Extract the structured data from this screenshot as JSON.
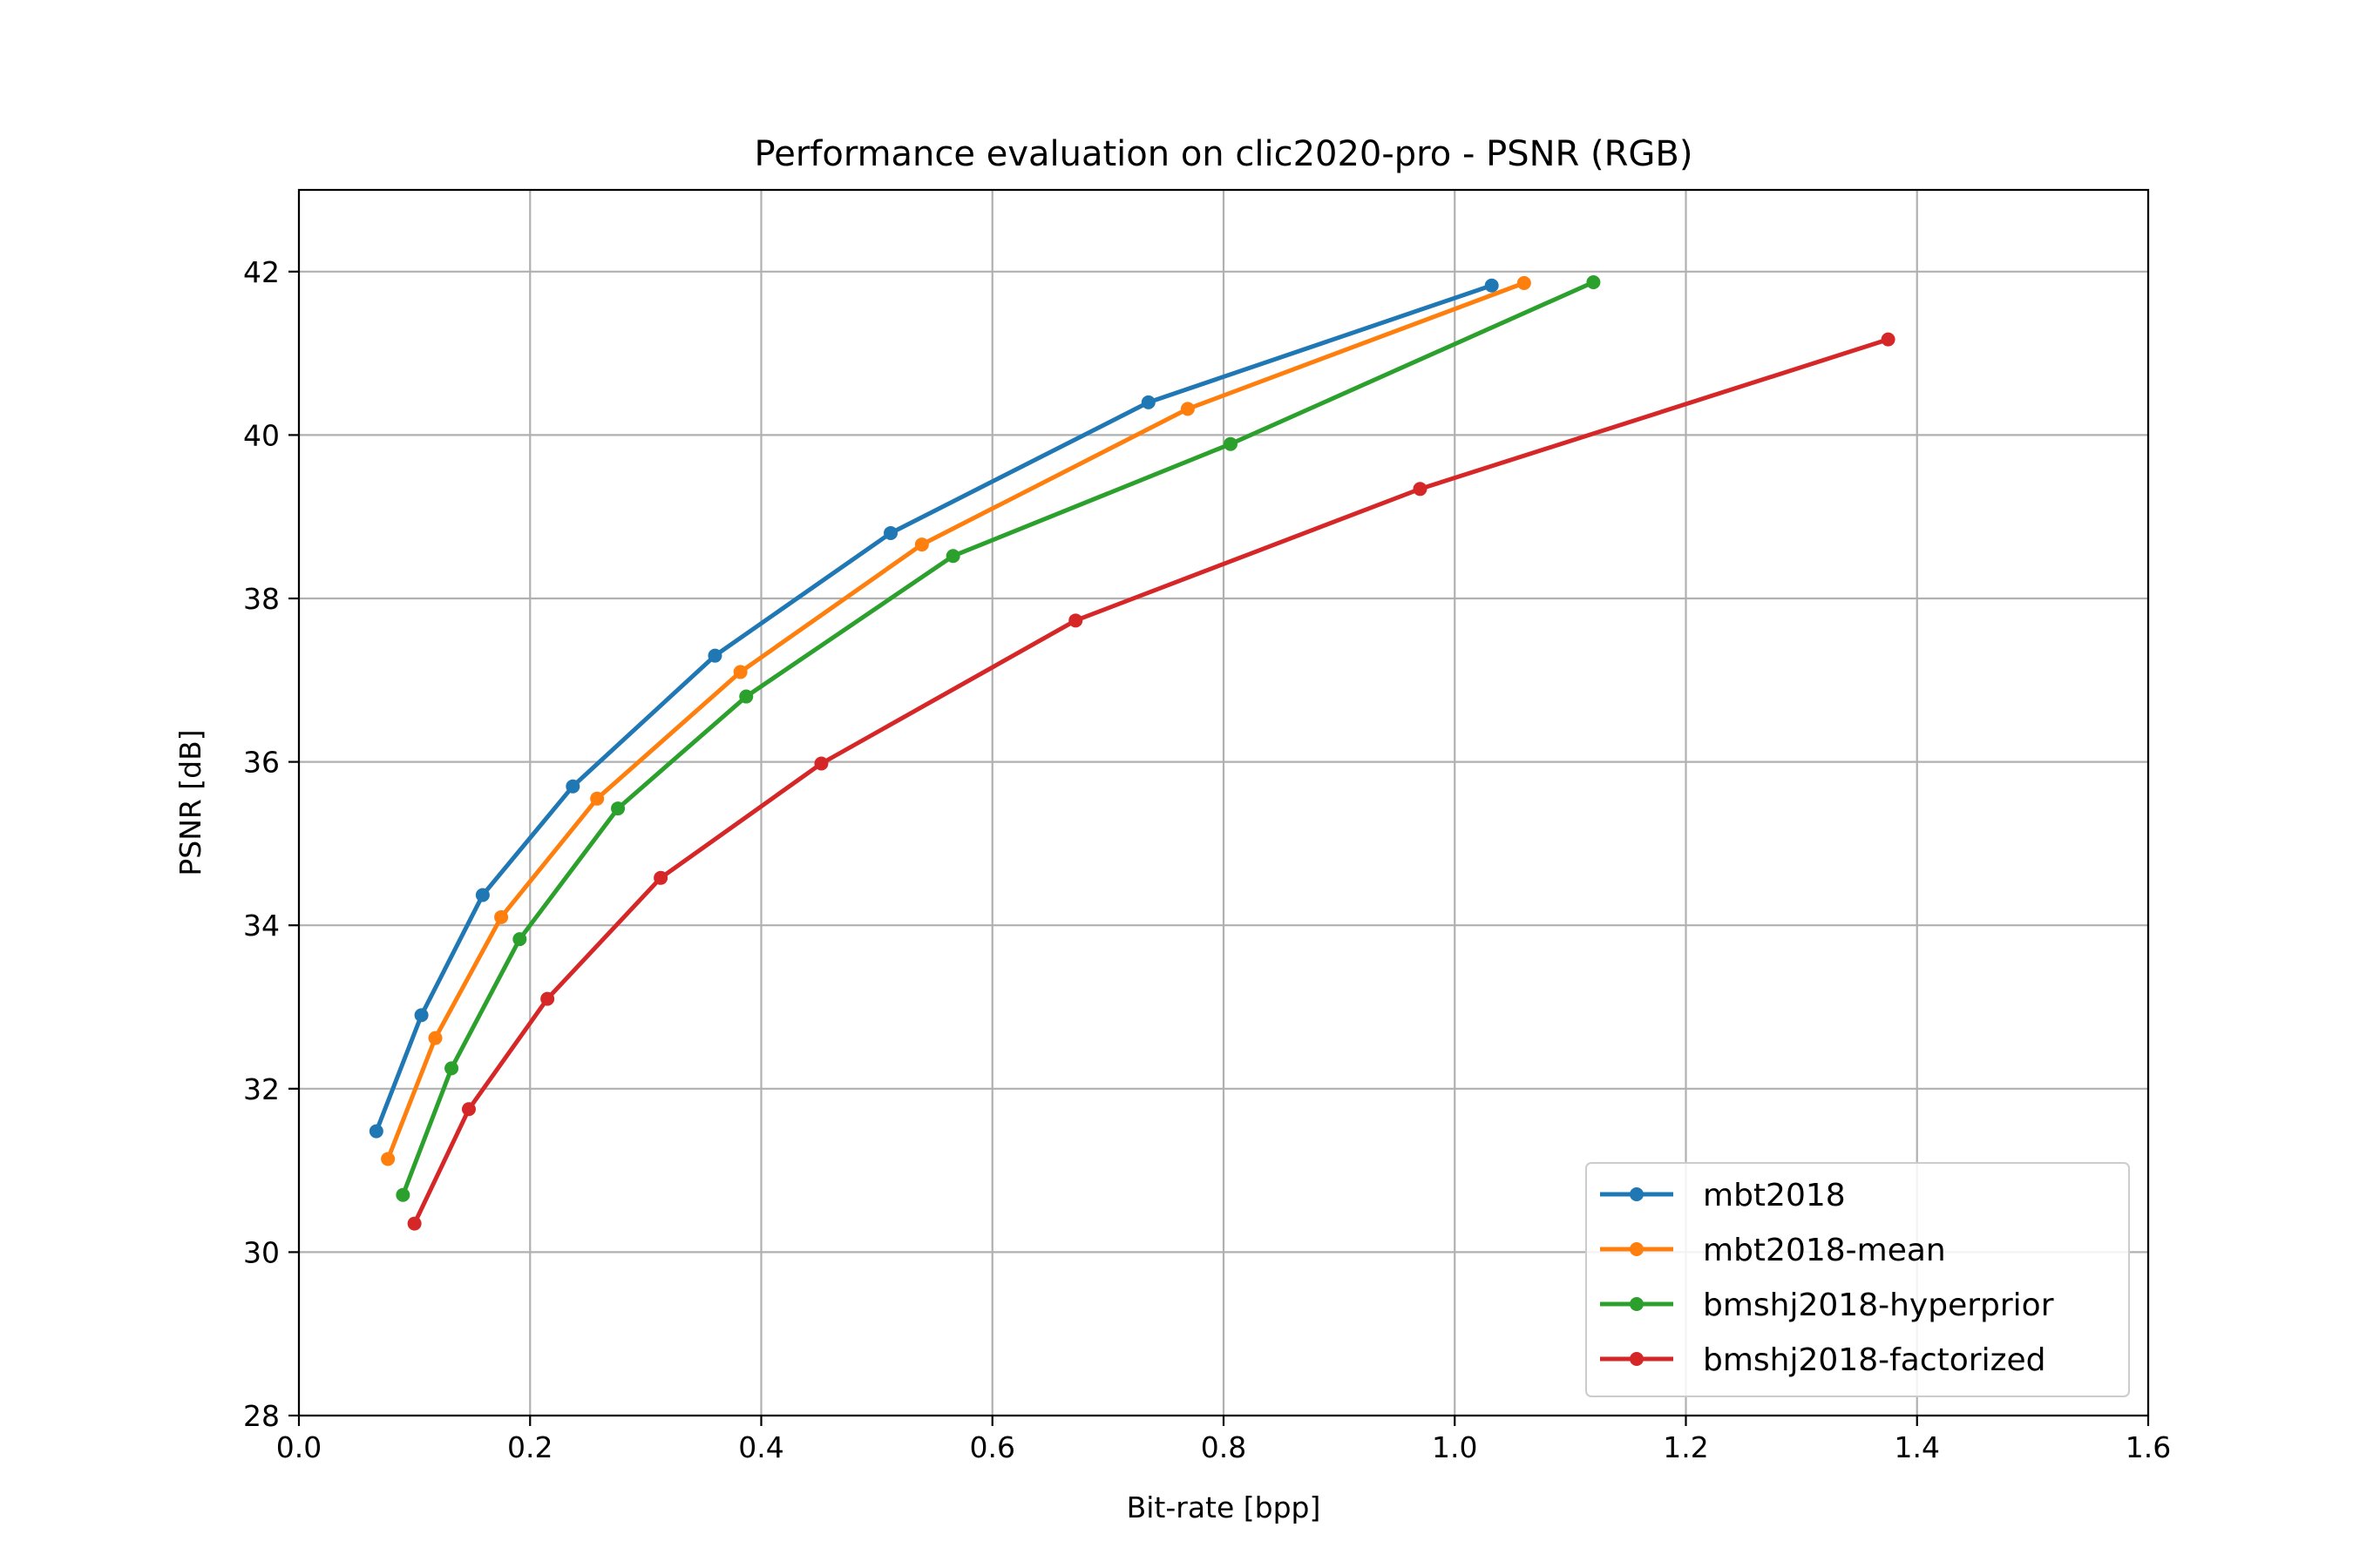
{
  "chart_data": {
    "type": "line",
    "title": "Performance evaluation on clic2020-pro - PSNR (RGB)",
    "xlabel": "Bit-rate [bpp]",
    "ylabel": "PSNR [dB]",
    "xlim": [
      0.0,
      1.6
    ],
    "ylim": [
      28,
      43
    ],
    "xticks": [
      0.0,
      0.2,
      0.4,
      0.6,
      0.8,
      1.0,
      1.2,
      1.4,
      1.6
    ],
    "xtick_labels": [
      "0.0",
      "0.2",
      "0.4",
      "0.6",
      "0.8",
      "1.0",
      "1.2",
      "1.4",
      "1.6"
    ],
    "yticks": [
      28,
      30,
      32,
      34,
      36,
      38,
      40,
      42
    ],
    "ytick_labels": [
      "28",
      "30",
      "32",
      "34",
      "36",
      "38",
      "40",
      "42"
    ],
    "grid": true,
    "legend_position": "lower-right",
    "series": [
      {
        "name": "mbt2018",
        "color": "#1f77b4",
        "x": [
          0.067,
          0.106,
          0.159,
          0.237,
          0.36,
          0.512,
          0.735,
          1.032
        ],
        "y": [
          31.48,
          32.9,
          34.37,
          35.7,
          37.3,
          38.8,
          40.4,
          41.83
        ]
      },
      {
        "name": "mbt2018-mean",
        "color": "#ff7f0e",
        "x": [
          0.077,
          0.118,
          0.175,
          0.258,
          0.382,
          0.539,
          0.769,
          1.06
        ],
        "y": [
          31.14,
          32.62,
          34.1,
          35.55,
          37.1,
          38.66,
          40.32,
          41.86
        ]
      },
      {
        "name": "bmshj2018-hyperprior",
        "color": "#2ca02c",
        "x": [
          0.09,
          0.132,
          0.191,
          0.276,
          0.387,
          0.566,
          0.806,
          1.12
        ],
        "y": [
          30.7,
          32.25,
          33.83,
          35.43,
          36.8,
          38.52,
          39.89,
          41.87
        ]
      },
      {
        "name": "bmshj2018-factorized",
        "color": "#d62728",
        "x": [
          0.1,
          0.147,
          0.215,
          0.313,
          0.452,
          0.672,
          0.97,
          1.375
        ],
        "y": [
          30.35,
          31.75,
          33.1,
          34.58,
          35.98,
          37.73,
          39.34,
          41.17
        ]
      }
    ]
  }
}
